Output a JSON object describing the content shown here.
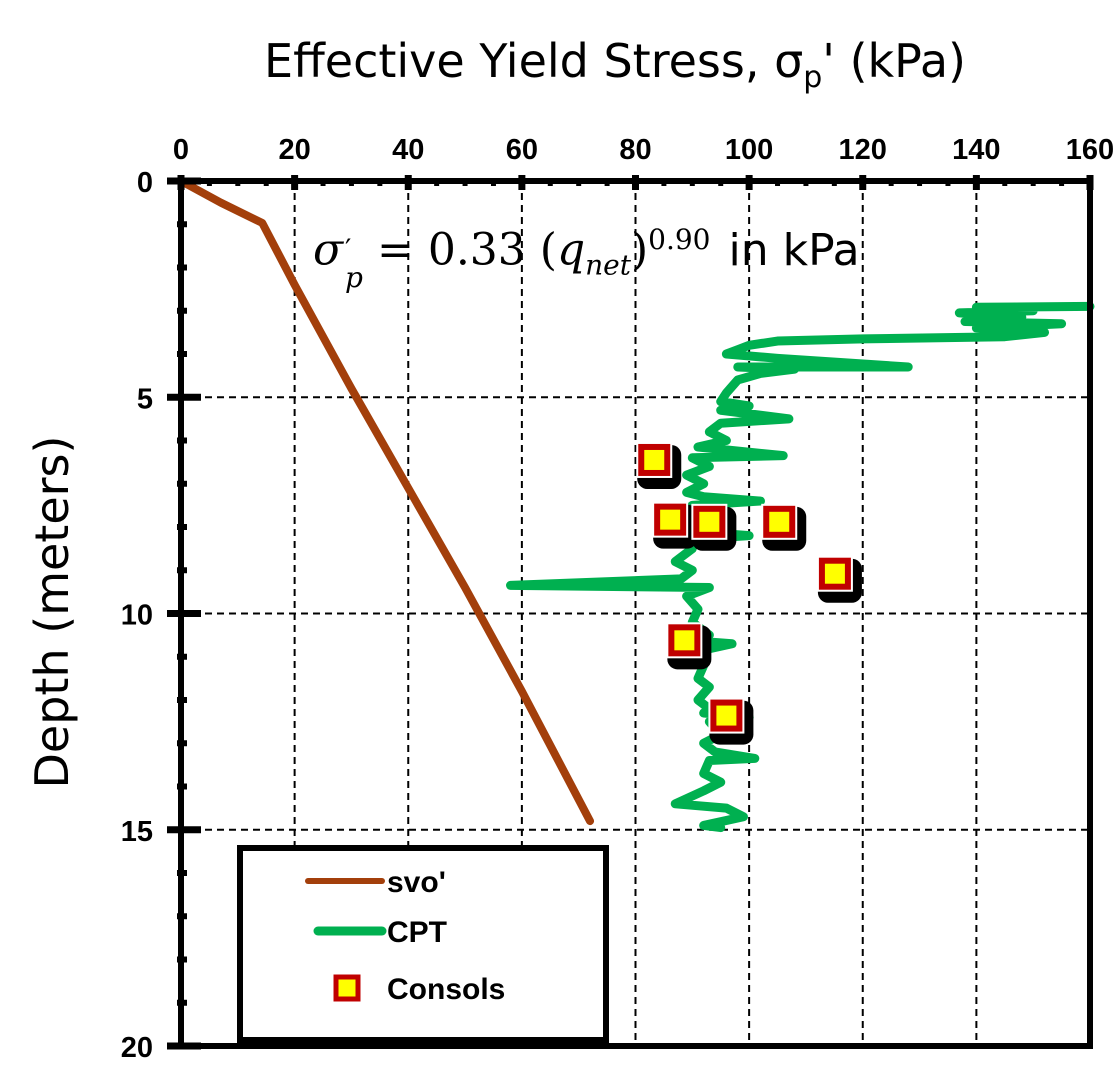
{
  "chart_data": {
    "type": "line",
    "title_main": "Effective Yield Stress, σ",
    "title_sub": "p",
    "title_end": "' (kPa)",
    "ylabel": "Depth (meters)",
    "xlim": [
      0,
      160
    ],
    "ylim": [
      20,
      0
    ],
    "x_axis_position": "top",
    "y_inverted": true,
    "grid": true,
    "x_ticks": [
      0,
      20,
      40,
      60,
      80,
      100,
      120,
      140,
      160
    ],
    "y_ticks": [
      0,
      5,
      10,
      15,
      20
    ],
    "annotation": {
      "lhs": "σ",
      "lhs_sub": "p",
      "lhs_prime": "′",
      "equals": " = 0.33 (",
      "var": "q",
      "var_sub": "net",
      "close": ")",
      "exponent": "0.90",
      "unit": "in kPa"
    },
    "legend_placement": "bottom-left",
    "series": [
      {
        "name": "svo'",
        "type": "line",
        "color": "#A33F0B",
        "points": [
          [
            0,
            0
          ],
          [
            7,
            0.5
          ],
          [
            14.3,
            0.97
          ],
          [
            20,
            2.4
          ],
          [
            30,
            4.8
          ],
          [
            40,
            7.1
          ],
          [
            50,
            9.4
          ],
          [
            60,
            11.8
          ],
          [
            72,
            14.8
          ]
        ]
      },
      {
        "name": "CPT",
        "type": "line",
        "color": "#00B050",
        "points": [
          [
            160,
            2.9
          ],
          [
            140,
            2.92
          ],
          [
            150,
            3.0
          ],
          [
            137,
            3.05
          ],
          [
            148,
            3.15
          ],
          [
            138,
            3.25
          ],
          [
            155,
            3.3
          ],
          [
            140,
            3.4
          ],
          [
            152,
            3.5
          ],
          [
            145,
            3.6
          ],
          [
            120,
            3.65
          ],
          [
            105,
            3.7
          ],
          [
            100,
            3.8
          ],
          [
            98,
            3.9
          ],
          [
            96,
            4.0
          ],
          [
            105,
            4.1
          ],
          [
            128,
            4.3
          ],
          [
            98,
            4.3
          ],
          [
            108,
            4.35
          ],
          [
            102,
            4.45
          ],
          [
            98,
            4.6
          ],
          [
            96,
            4.9
          ],
          [
            95,
            5.1
          ],
          [
            100,
            5.2
          ],
          [
            95,
            5.3
          ],
          [
            107,
            5.5
          ],
          [
            95,
            5.6
          ],
          [
            93,
            5.8
          ],
          [
            96,
            6.0
          ],
          [
            91,
            6.15
          ],
          [
            106,
            6.35
          ],
          [
            90,
            6.4
          ],
          [
            93,
            6.6
          ],
          [
            89,
            6.8
          ],
          [
            92,
            7.0
          ],
          [
            89,
            7.2
          ],
          [
            92,
            7.3
          ],
          [
            102,
            7.4
          ],
          [
            90,
            7.5
          ],
          [
            88,
            7.7
          ],
          [
            91,
            7.9
          ],
          [
            90,
            8.1
          ],
          [
            100,
            8.2
          ],
          [
            88,
            8.3
          ],
          [
            90,
            8.5
          ],
          [
            87,
            8.8
          ],
          [
            90,
            9.0
          ],
          [
            88,
            9.2
          ],
          [
            58,
            9.35
          ],
          [
            93,
            9.4
          ],
          [
            89,
            9.6
          ],
          [
            91,
            9.9
          ],
          [
            90,
            10.2
          ],
          [
            93,
            10.5
          ],
          [
            87,
            10.6
          ],
          [
            97,
            10.7
          ],
          [
            90,
            10.9
          ],
          [
            92,
            11.2
          ],
          [
            91,
            11.5
          ],
          [
            93,
            11.7
          ],
          [
            91,
            12.0
          ],
          [
            93,
            12.2
          ],
          [
            92,
            12.3
          ],
          [
            100,
            12.4
          ],
          [
            93,
            12.5
          ],
          [
            95,
            12.8
          ],
          [
            92,
            13.0
          ],
          [
            94,
            13.2
          ],
          [
            101,
            13.35
          ],
          [
            93,
            13.4
          ],
          [
            92,
            13.7
          ],
          [
            95,
            13.9
          ],
          [
            92,
            14.1
          ],
          [
            87,
            14.4
          ],
          [
            96,
            14.5
          ],
          [
            99,
            14.7
          ],
          [
            92,
            14.9
          ],
          [
            95,
            14.95
          ]
        ]
      },
      {
        "name": "Consols",
        "type": "scatter",
        "color": "#FFFF00",
        "edge_color": "#C00000",
        "points": [
          [
            83.3,
            6.45
          ],
          [
            86.1,
            7.83
          ],
          [
            93.0,
            7.88
          ],
          [
            105.3,
            7.88
          ],
          [
            115.1,
            9.08
          ],
          [
            88.6,
            10.62
          ],
          [
            96.0,
            12.36
          ]
        ]
      }
    ]
  }
}
